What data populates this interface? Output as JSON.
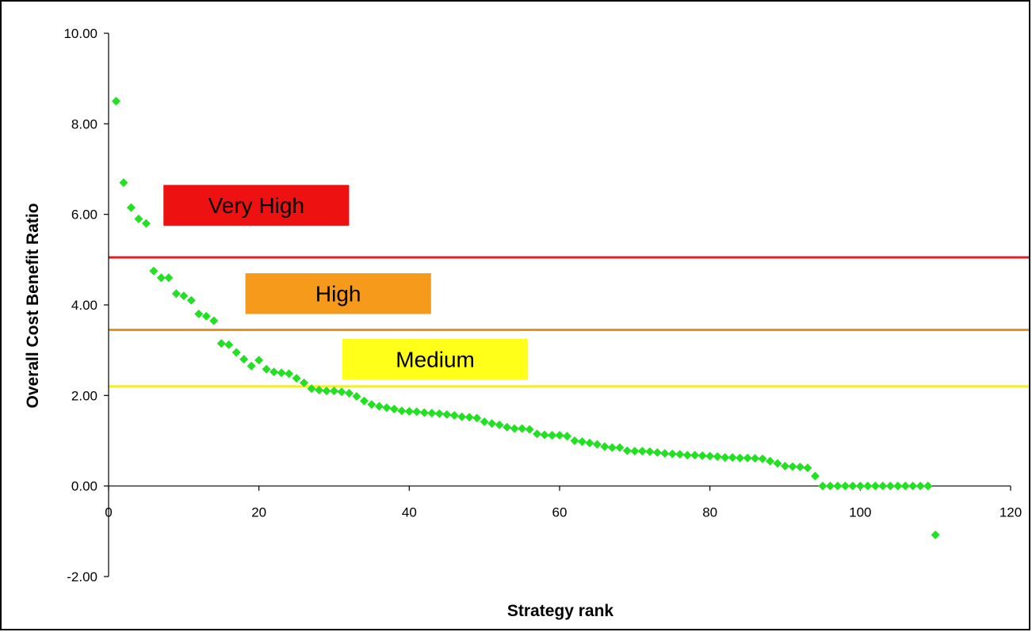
{
  "chart_data": {
    "type": "scatter",
    "xlabel": "Strategy rank",
    "ylabel": "Overall Cost Benefit Ratio",
    "xlim": [
      0,
      120
    ],
    "ylim": [
      -2,
      10
    ],
    "x_ticks": [
      "0",
      "20",
      "40",
      "60",
      "80",
      "100",
      "120"
    ],
    "y_ticks": [
      "-2.00",
      "0.00",
      "2.00",
      "4.00",
      "6.00",
      "8.00",
      "10.00"
    ],
    "grid": false,
    "marker": "diamond",
    "marker_color": "#22e022",
    "points": [
      [
        1,
        8.5
      ],
      [
        2,
        6.7
      ],
      [
        3,
        6.15
      ],
      [
        4,
        5.9
      ],
      [
        5,
        5.8
      ],
      [
        6,
        4.75
      ],
      [
        7,
        4.6
      ],
      [
        8,
        4.6
      ],
      [
        9,
        4.25
      ],
      [
        10,
        4.2
      ],
      [
        11,
        4.1
      ],
      [
        12,
        3.8
      ],
      [
        13,
        3.75
      ],
      [
        14,
        3.65
      ],
      [
        15,
        3.15
      ],
      [
        16,
        3.12
      ],
      [
        17,
        2.95
      ],
      [
        18,
        2.8
      ],
      [
        19,
        2.65
      ],
      [
        20,
        2.78
      ],
      [
        21,
        2.58
      ],
      [
        22,
        2.52
      ],
      [
        23,
        2.5
      ],
      [
        24,
        2.48
      ],
      [
        25,
        2.38
      ],
      [
        26,
        2.28
      ],
      [
        27,
        2.15
      ],
      [
        28,
        2.12
      ],
      [
        29,
        2.1
      ],
      [
        30,
        2.1
      ],
      [
        31,
        2.08
      ],
      [
        32,
        2.05
      ],
      [
        33,
        1.98
      ],
      [
        34,
        1.88
      ],
      [
        35,
        1.8
      ],
      [
        36,
        1.76
      ],
      [
        37,
        1.73
      ],
      [
        38,
        1.7
      ],
      [
        39,
        1.66
      ],
      [
        40,
        1.65
      ],
      [
        41,
        1.64
      ],
      [
        42,
        1.62
      ],
      [
        43,
        1.61
      ],
      [
        44,
        1.6
      ],
      [
        45,
        1.58
      ],
      [
        46,
        1.56
      ],
      [
        47,
        1.53
      ],
      [
        48,
        1.52
      ],
      [
        49,
        1.5
      ],
      [
        50,
        1.42
      ],
      [
        51,
        1.38
      ],
      [
        52,
        1.35
      ],
      [
        53,
        1.3
      ],
      [
        54,
        1.27
      ],
      [
        55,
        1.27
      ],
      [
        56,
        1.25
      ],
      [
        57,
        1.15
      ],
      [
        58,
        1.13
      ],
      [
        59,
        1.12
      ],
      [
        60,
        1.12
      ],
      [
        61,
        1.1
      ],
      [
        62,
        1.0
      ],
      [
        63,
        0.98
      ],
      [
        64,
        0.95
      ],
      [
        65,
        0.92
      ],
      [
        66,
        0.87
      ],
      [
        67,
        0.85
      ],
      [
        68,
        0.85
      ],
      [
        69,
        0.78
      ],
      [
        70,
        0.77
      ],
      [
        71,
        0.77
      ],
      [
        72,
        0.76
      ],
      [
        73,
        0.74
      ],
      [
        74,
        0.72
      ],
      [
        75,
        0.71
      ],
      [
        76,
        0.7
      ],
      [
        77,
        0.68
      ],
      [
        78,
        0.68
      ],
      [
        79,
        0.67
      ],
      [
        80,
        0.66
      ],
      [
        81,
        0.65
      ],
      [
        82,
        0.63
      ],
      [
        83,
        0.63
      ],
      [
        84,
        0.62
      ],
      [
        85,
        0.62
      ],
      [
        86,
        0.61
      ],
      [
        87,
        0.6
      ],
      [
        88,
        0.55
      ],
      [
        89,
        0.5
      ],
      [
        90,
        0.44
      ],
      [
        91,
        0.43
      ],
      [
        92,
        0.42
      ],
      [
        93,
        0.4
      ],
      [
        94,
        0.22
      ],
      [
        95,
        0.0
      ],
      [
        96,
        0.0
      ],
      [
        97,
        0.0
      ],
      [
        98,
        0.0
      ],
      [
        99,
        0.0
      ],
      [
        100,
        0.0
      ],
      [
        101,
        0.0
      ],
      [
        102,
        0.0
      ],
      [
        103,
        0.0
      ],
      [
        104,
        0.0
      ],
      [
        105,
        0.0
      ],
      [
        106,
        0.0
      ],
      [
        107,
        0.0
      ],
      [
        108,
        0.0
      ],
      [
        109,
        0.0
      ],
      [
        110,
        -1.08
      ]
    ],
    "thresholds": [
      {
        "name": "very-high",
        "y": 5.05,
        "color": "#e02020"
      },
      {
        "name": "high",
        "y": 3.45,
        "color": "#f09010"
      },
      {
        "name": "medium",
        "y": 2.2,
        "color": "#f0f020"
      }
    ],
    "annotations": [
      {
        "name": "very-high",
        "text": "Very High",
        "x0": 7.3,
        "x1": 32.0,
        "y0": 5.75,
        "y1": 6.65,
        "fill": "#ee1111"
      },
      {
        "name": "high",
        "text": "High",
        "x0": 18.2,
        "x1": 42.9,
        "y0": 3.8,
        "y1": 4.7,
        "fill": "#f59a1a"
      },
      {
        "name": "medium",
        "text": "Medium",
        "x0": 31.1,
        "x1": 55.8,
        "y0": 2.35,
        "y1": 3.25,
        "fill": "#ffff1a"
      }
    ]
  }
}
